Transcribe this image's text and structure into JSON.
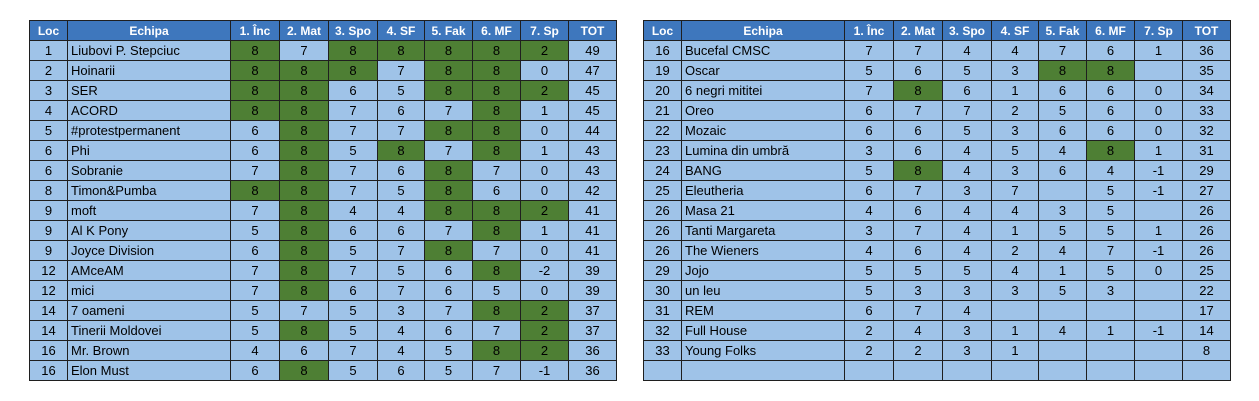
{
  "colors": {
    "header": "#3e77bd",
    "cell": "#9fc3e8",
    "highlight": "#4e7f34",
    "border": "#1f1f1f"
  },
  "headers": [
    "Loc",
    "Echipa",
    "1. Înc",
    "2. Mat",
    "3. Spo",
    "4. SF",
    "5. Fak",
    "6. MF",
    "7. Sp",
    "TOT"
  ],
  "left_rows": [
    {
      "loc": "1",
      "team": "Liubovi P. Stepciuc",
      "scores": [
        "8",
        "7",
        "8",
        "8",
        "8",
        "8",
        "2"
      ],
      "hl": [
        1,
        0,
        1,
        1,
        1,
        1,
        1
      ],
      "tot": "49"
    },
    {
      "loc": "2",
      "team": "Hoinarii",
      "scores": [
        "8",
        "8",
        "8",
        "7",
        "8",
        "8",
        "0"
      ],
      "hl": [
        1,
        1,
        1,
        0,
        1,
        1,
        0
      ],
      "tot": "47"
    },
    {
      "loc": "3",
      "team": "SER",
      "scores": [
        "8",
        "8",
        "6",
        "5",
        "8",
        "8",
        "2"
      ],
      "hl": [
        1,
        1,
        0,
        0,
        1,
        1,
        1
      ],
      "tot": "45"
    },
    {
      "loc": "4",
      "team": "ACORD",
      "scores": [
        "8",
        "8",
        "7",
        "6",
        "7",
        "8",
        "1"
      ],
      "hl": [
        1,
        1,
        0,
        0,
        0,
        1,
        0
      ],
      "tot": "45"
    },
    {
      "loc": "5",
      "team": "#protestpermanent",
      "scores": [
        "6",
        "8",
        "7",
        "7",
        "8",
        "8",
        "0"
      ],
      "hl": [
        0,
        1,
        0,
        0,
        1,
        1,
        0
      ],
      "tot": "44"
    },
    {
      "loc": "6",
      "team": "Phi",
      "scores": [
        "6",
        "8",
        "5",
        "8",
        "7",
        "8",
        "1"
      ],
      "hl": [
        0,
        1,
        0,
        1,
        0,
        1,
        0
      ],
      "tot": "43"
    },
    {
      "loc": "6",
      "team": "Sobranie",
      "scores": [
        "7",
        "8",
        "7",
        "6",
        "8",
        "7",
        "0"
      ],
      "hl": [
        0,
        1,
        0,
        0,
        1,
        0,
        0
      ],
      "tot": "43"
    },
    {
      "loc": "8",
      "team": "Timon&Pumba",
      "scores": [
        "8",
        "8",
        "7",
        "5",
        "8",
        "6",
        "0"
      ],
      "hl": [
        1,
        1,
        0,
        0,
        1,
        0,
        0
      ],
      "tot": "42"
    },
    {
      "loc": "9",
      "team": "moft",
      "scores": [
        "7",
        "8",
        "4",
        "4",
        "8",
        "8",
        "2"
      ],
      "hl": [
        0,
        1,
        0,
        0,
        1,
        1,
        1
      ],
      "tot": "41"
    },
    {
      "loc": "9",
      "team": "Al K Pony",
      "scores": [
        "5",
        "8",
        "6",
        "6",
        "7",
        "8",
        "1"
      ],
      "hl": [
        0,
        1,
        0,
        0,
        0,
        1,
        0
      ],
      "tot": "41"
    },
    {
      "loc": "9",
      "team": "Joyce Division",
      "scores": [
        "6",
        "8",
        "5",
        "7",
        "8",
        "7",
        "0"
      ],
      "hl": [
        0,
        1,
        0,
        0,
        1,
        0,
        0
      ],
      "tot": "41"
    },
    {
      "loc": "12",
      "team": "AMceAM",
      "scores": [
        "7",
        "8",
        "7",
        "5",
        "6",
        "8",
        "-2"
      ],
      "hl": [
        0,
        1,
        0,
        0,
        0,
        1,
        0
      ],
      "tot": "39"
    },
    {
      "loc": "12",
      "team": "mici",
      "scores": [
        "7",
        "8",
        "6",
        "7",
        "6",
        "5",
        "0"
      ],
      "hl": [
        0,
        1,
        0,
        0,
        0,
        0,
        0
      ],
      "tot": "39"
    },
    {
      "loc": "14",
      "team": "7 oameni",
      "scores": [
        "5",
        "7",
        "5",
        "3",
        "7",
        "8",
        "2"
      ],
      "hl": [
        0,
        0,
        0,
        0,
        0,
        1,
        1
      ],
      "tot": "37"
    },
    {
      "loc": "14",
      "team": "Tinerii Moldovei",
      "scores": [
        "5",
        "8",
        "5",
        "4",
        "6",
        "7",
        "2"
      ],
      "hl": [
        0,
        1,
        0,
        0,
        0,
        0,
        1
      ],
      "tot": "37"
    },
    {
      "loc": "16",
      "team": "Mr. Brown",
      "scores": [
        "4",
        "6",
        "7",
        "4",
        "5",
        "8",
        "2"
      ],
      "hl": [
        0,
        0,
        0,
        0,
        0,
        1,
        1
      ],
      "tot": "36"
    },
    {
      "loc": "16",
      "team": "Elon Must",
      "scores": [
        "6",
        "8",
        "5",
        "6",
        "5",
        "7",
        "-1"
      ],
      "hl": [
        0,
        1,
        0,
        0,
        0,
        0,
        0
      ],
      "tot": "36"
    }
  ],
  "right_rows": [
    {
      "loc": "16",
      "team": "Bucefal CMSC",
      "scores": [
        "7",
        "7",
        "4",
        "4",
        "7",
        "6",
        "1"
      ],
      "hl": [
        0,
        0,
        0,
        0,
        0,
        0,
        0
      ],
      "tot": "36"
    },
    {
      "loc": "19",
      "team": "Oscar",
      "scores": [
        "5",
        "6",
        "5",
        "3",
        "8",
        "8",
        ""
      ],
      "hl": [
        0,
        0,
        0,
        0,
        1,
        1,
        0
      ],
      "tot": "35"
    },
    {
      "loc": "20",
      "team": "6 negri mititei",
      "scores": [
        "7",
        "8",
        "6",
        "1",
        "6",
        "6",
        "0"
      ],
      "hl": [
        0,
        1,
        0,
        0,
        0,
        0,
        0
      ],
      "tot": "34"
    },
    {
      "loc": "21",
      "team": "Oreo",
      "scores": [
        "6",
        "7",
        "7",
        "2",
        "5",
        "6",
        "0"
      ],
      "hl": [
        0,
        0,
        0,
        0,
        0,
        0,
        0
      ],
      "tot": "33"
    },
    {
      "loc": "22",
      "team": "Mozaic",
      "scores": [
        "6",
        "6",
        "5",
        "3",
        "6",
        "6",
        "0"
      ],
      "hl": [
        0,
        0,
        0,
        0,
        0,
        0,
        0
      ],
      "tot": "32"
    },
    {
      "loc": "23",
      "team": "Lumina din umbră",
      "scores": [
        "3",
        "6",
        "4",
        "5",
        "4",
        "8",
        "1"
      ],
      "hl": [
        0,
        0,
        0,
        0,
        0,
        1,
        0
      ],
      "tot": "31"
    },
    {
      "loc": "24",
      "team": "BANG",
      "scores": [
        "5",
        "8",
        "4",
        "3",
        "6",
        "4",
        "-1"
      ],
      "hl": [
        0,
        1,
        0,
        0,
        0,
        0,
        0
      ],
      "tot": "29"
    },
    {
      "loc": "25",
      "team": "Eleutheria",
      "scores": [
        "6",
        "7",
        "3",
        "7",
        "",
        "5",
        "-1"
      ],
      "hl": [
        0,
        0,
        0,
        0,
        0,
        0,
        0
      ],
      "tot": "27"
    },
    {
      "loc": "26",
      "team": "Masa 21",
      "scores": [
        "4",
        "6",
        "4",
        "4",
        "3",
        "5",
        ""
      ],
      "hl": [
        0,
        0,
        0,
        0,
        0,
        0,
        0
      ],
      "tot": "26"
    },
    {
      "loc": "26",
      "team": "Tanti Margareta",
      "scores": [
        "3",
        "7",
        "4",
        "1",
        "5",
        "5",
        "1"
      ],
      "hl": [
        0,
        0,
        0,
        0,
        0,
        0,
        0
      ],
      "tot": "26"
    },
    {
      "loc": "26",
      "team": "The Wieners",
      "scores": [
        "4",
        "6",
        "4",
        "2",
        "4",
        "7",
        "-1"
      ],
      "hl": [
        0,
        0,
        0,
        0,
        0,
        0,
        0
      ],
      "tot": "26"
    },
    {
      "loc": "29",
      "team": "Jojo",
      "scores": [
        "5",
        "5",
        "5",
        "4",
        "1",
        "5",
        "0"
      ],
      "hl": [
        0,
        0,
        0,
        0,
        0,
        0,
        0
      ],
      "tot": "25"
    },
    {
      "loc": "30",
      "team": "un leu",
      "scores": [
        "5",
        "3",
        "3",
        "3",
        "5",
        "3",
        ""
      ],
      "hl": [
        0,
        0,
        0,
        0,
        0,
        0,
        0
      ],
      "tot": "22"
    },
    {
      "loc": "31",
      "team": "REM",
      "scores": [
        "6",
        "7",
        "4",
        "",
        "",
        "",
        ""
      ],
      "hl": [
        0,
        0,
        0,
        0,
        0,
        0,
        0
      ],
      "tot": "17"
    },
    {
      "loc": "32",
      "team": "Full House",
      "scores": [
        "2",
        "4",
        "3",
        "1",
        "4",
        "1",
        "-1"
      ],
      "hl": [
        0,
        0,
        0,
        0,
        0,
        0,
        0
      ],
      "tot": "14"
    },
    {
      "loc": "33",
      "team": "Young Folks",
      "scores": [
        "2",
        "2",
        "3",
        "1",
        "",
        "",
        ""
      ],
      "hl": [
        0,
        0,
        0,
        0,
        0,
        0,
        0
      ],
      "tot": "8"
    },
    {
      "loc": "",
      "team": "",
      "scores": [
        "",
        "",
        "",
        "",
        "",
        "",
        ""
      ],
      "hl": [
        0,
        0,
        0,
        0,
        0,
        0,
        0
      ],
      "tot": ""
    }
  ]
}
